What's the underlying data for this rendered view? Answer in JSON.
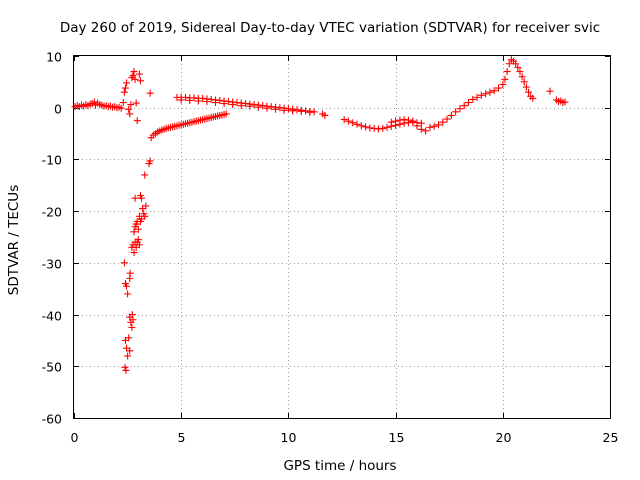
{
  "chart_data": {
    "type": "scatter",
    "title": "Day 260 of 2019, Sidereal Day-to-day VTEC variation (SDTVAR) for receiver svic",
    "xlabel": "GPS time / hours",
    "ylabel": "SDTVAR / TECUs",
    "xlim": [
      0,
      25
    ],
    "ylim": [
      -60,
      10
    ],
    "xticks": [
      "0",
      "5",
      "10",
      "15",
      "20",
      "25"
    ],
    "yticks": [
      "10",
      "0",
      "-10",
      "-20",
      "-30",
      "-40",
      "-50",
      "-60"
    ],
    "grid": true,
    "marker": "+",
    "series": [
      {
        "name": "SDTVAR",
        "color": "#ff0000",
        "points": [
          [
            0.05,
            0.2
          ],
          [
            0.15,
            0.4
          ],
          [
            0.25,
            0.2
          ],
          [
            0.35,
            0.5
          ],
          [
            0.45,
            0.3
          ],
          [
            0.55,
            0.6
          ],
          [
            0.65,
            0.4
          ],
          [
            0.75,
            0.7
          ],
          [
            0.85,
            0.8
          ],
          [
            0.95,
            1.1
          ],
          [
            1.0,
            0.5
          ],
          [
            1.1,
            0.9
          ],
          [
            1.2,
            0.6
          ],
          [
            1.3,
            0.5
          ],
          [
            1.4,
            0.3
          ],
          [
            1.5,
            0.4
          ],
          [
            1.6,
            0.2
          ],
          [
            1.7,
            0.3
          ],
          [
            1.8,
            0.1
          ],
          [
            1.9,
            0.2
          ],
          [
            2.0,
            0.0
          ],
          [
            2.1,
            0.1
          ],
          [
            2.2,
            -0.1
          ],
          [
            2.3,
            1.0
          ],
          [
            2.35,
            3.0
          ],
          [
            2.4,
            3.8
          ],
          [
            2.45,
            4.8
          ],
          [
            2.55,
            -0.3
          ],
          [
            2.6,
            -1.2
          ],
          [
            2.65,
            0.6
          ],
          [
            2.7,
            5.8
          ],
          [
            2.75,
            6.2
          ],
          [
            2.8,
            7.0
          ],
          [
            2.85,
            5.5
          ],
          [
            2.9,
            0.9
          ],
          [
            2.95,
            -2.5
          ],
          [
            3.05,
            6.5
          ],
          [
            3.1,
            5.2
          ],
          [
            3.55,
            2.8
          ],
          [
            2.35,
            -30.0
          ],
          [
            2.4,
            -34.0
          ],
          [
            2.45,
            -34.5
          ],
          [
            2.5,
            -36.0
          ],
          [
            2.4,
            -45.0
          ],
          [
            2.45,
            -46.5
          ],
          [
            2.5,
            -48.0
          ],
          [
            2.38,
            -50.2
          ],
          [
            2.42,
            -50.8
          ],
          [
            2.55,
            -44.5
          ],
          [
            2.6,
            -47.0
          ],
          [
            2.6,
            -40.5
          ],
          [
            2.65,
            -41.5
          ],
          [
            2.7,
            -42.5
          ],
          [
            2.72,
            -40.0
          ],
          [
            2.75,
            -41.0
          ],
          [
            2.6,
            -33.0
          ],
          [
            2.62,
            -32.0
          ],
          [
            2.7,
            -27.0
          ],
          [
            2.75,
            -26.5
          ],
          [
            2.8,
            -28.0
          ],
          [
            2.85,
            -26.0
          ],
          [
            2.9,
            -27.0
          ],
          [
            2.95,
            -26.0
          ],
          [
            3.0,
            -25.5
          ],
          [
            3.05,
            -26.5
          ],
          [
            2.8,
            -24.0
          ],
          [
            2.85,
            -23.0
          ],
          [
            2.9,
            -22.5
          ],
          [
            2.95,
            -22.0
          ],
          [
            3.0,
            -23.5
          ],
          [
            3.05,
            -21.0
          ],
          [
            3.1,
            -22.0
          ],
          [
            3.15,
            -21.5
          ],
          [
            2.85,
            -17.5
          ],
          [
            3.2,
            -19.5
          ],
          [
            3.25,
            -20.5
          ],
          [
            3.3,
            -21.0
          ],
          [
            3.35,
            -19.0
          ],
          [
            3.1,
            -17.0
          ],
          [
            3.15,
            -17.5
          ],
          [
            3.3,
            -13.0
          ],
          [
            3.5,
            -10.8
          ],
          [
            3.55,
            -10.3
          ],
          [
            3.6,
            -5.8
          ],
          [
            3.7,
            -5.3
          ],
          [
            3.8,
            -5.0
          ],
          [
            3.9,
            -4.7
          ],
          [
            4.0,
            -4.5
          ],
          [
            4.1,
            -4.3
          ],
          [
            4.2,
            -4.2
          ],
          [
            4.3,
            -4.0
          ],
          [
            4.4,
            -3.9
          ],
          [
            4.5,
            -3.8
          ],
          [
            4.6,
            -3.7
          ],
          [
            4.7,
            -3.6
          ],
          [
            4.8,
            -3.5
          ],
          [
            4.9,
            -3.4
          ],
          [
            5.0,
            -3.3
          ],
          [
            5.1,
            -3.2
          ],
          [
            5.2,
            -3.1
          ],
          [
            5.3,
            -3.0
          ],
          [
            5.4,
            -2.9
          ],
          [
            5.5,
            -2.8
          ],
          [
            5.6,
            -2.7
          ],
          [
            5.7,
            -2.6
          ],
          [
            5.8,
            -2.5
          ],
          [
            5.9,
            -2.4
          ],
          [
            6.0,
            -2.3
          ],
          [
            6.1,
            -2.2
          ],
          [
            6.2,
            -2.1
          ],
          [
            6.3,
            -2.0
          ],
          [
            6.4,
            -1.9
          ],
          [
            6.5,
            -1.8
          ],
          [
            6.6,
            -1.7
          ],
          [
            6.7,
            -1.6
          ],
          [
            6.8,
            -1.5
          ],
          [
            6.9,
            -1.4
          ],
          [
            7.0,
            -1.3
          ],
          [
            7.1,
            -1.2
          ],
          [
            4.8,
            2.0
          ],
          [
            5.0,
            2.0
          ],
          [
            5.2,
            2.0
          ],
          [
            5.4,
            1.9
          ],
          [
            5.6,
            1.9
          ],
          [
            5.8,
            1.8
          ],
          [
            6.0,
            1.8
          ],
          [
            6.2,
            1.7
          ],
          [
            6.4,
            1.6
          ],
          [
            6.6,
            1.5
          ],
          [
            6.8,
            1.4
          ],
          [
            7.0,
            1.3
          ],
          [
            7.2,
            1.2
          ],
          [
            7.4,
            1.1
          ],
          [
            7.6,
            1.0
          ],
          [
            7.8,
            0.9
          ],
          [
            8.0,
            0.8
          ],
          [
            8.2,
            0.7
          ],
          [
            8.4,
            0.6
          ],
          [
            8.6,
            0.5
          ],
          [
            8.8,
            0.4
          ],
          [
            9.0,
            0.3
          ],
          [
            9.2,
            0.2
          ],
          [
            9.4,
            0.1
          ],
          [
            9.6,
            0.0
          ],
          [
            9.8,
            -0.1
          ],
          [
            10.0,
            -0.2
          ],
          [
            10.2,
            -0.3
          ],
          [
            10.4,
            -0.4
          ],
          [
            10.6,
            -0.5
          ],
          [
            10.8,
            -0.6
          ],
          [
            11.0,
            -0.7
          ],
          [
            11.2,
            -0.8
          ],
          [
            11.6,
            -1.2
          ],
          [
            11.7,
            -1.5
          ],
          [
            5.0,
            1.5
          ],
          [
            5.4,
            1.4
          ],
          [
            5.8,
            1.3
          ],
          [
            6.2,
            1.2
          ],
          [
            6.6,
            1.0
          ],
          [
            7.0,
            0.8
          ],
          [
            7.4,
            0.6
          ],
          [
            7.8,
            0.4
          ],
          [
            8.2,
            0.3
          ],
          [
            8.6,
            0.1
          ],
          [
            9.0,
            -0.1
          ],
          [
            9.4,
            -0.3
          ],
          [
            9.8,
            -0.5
          ],
          [
            10.2,
            -0.6
          ],
          [
            10.6,
            -0.7
          ],
          [
            11.0,
            -0.9
          ],
          [
            12.6,
            -2.3
          ],
          [
            12.8,
            -2.6
          ],
          [
            13.0,
            -2.9
          ],
          [
            13.2,
            -3.2
          ],
          [
            13.4,
            -3.5
          ],
          [
            13.6,
            -3.7
          ],
          [
            13.8,
            -3.9
          ],
          [
            14.0,
            -4.0
          ],
          [
            14.2,
            -4.1
          ],
          [
            14.4,
            -4.0
          ],
          [
            14.6,
            -3.8
          ],
          [
            14.8,
            -3.6
          ],
          [
            15.0,
            -3.4
          ],
          [
            15.2,
            -3.2
          ],
          [
            15.4,
            -3.0
          ],
          [
            15.6,
            -2.9
          ],
          [
            15.8,
            -2.8
          ],
          [
            16.0,
            -2.9
          ],
          [
            16.2,
            -3.0
          ],
          [
            14.8,
            -2.8
          ],
          [
            15.0,
            -2.6
          ],
          [
            15.2,
            -2.4
          ],
          [
            15.4,
            -2.3
          ],
          [
            15.6,
            -2.4
          ],
          [
            15.8,
            -2.6
          ],
          [
            16.0,
            -3.5
          ],
          [
            16.2,
            -4.2
          ],
          [
            16.4,
            -4.5
          ],
          [
            16.6,
            -3.8
          ],
          [
            16.8,
            -3.6
          ],
          [
            17.0,
            -3.3
          ],
          [
            17.2,
            -2.8
          ],
          [
            17.4,
            -2.2
          ],
          [
            17.6,
            -1.5
          ],
          [
            17.8,
            -0.8
          ],
          [
            18.0,
            -0.2
          ],
          [
            18.2,
            0.4
          ],
          [
            18.4,
            1.0
          ],
          [
            18.6,
            1.6
          ],
          [
            18.8,
            2.0
          ],
          [
            19.0,
            2.4
          ],
          [
            19.2,
            2.7
          ],
          [
            19.4,
            3.0
          ],
          [
            19.6,
            3.3
          ],
          [
            19.8,
            3.8
          ],
          [
            20.0,
            4.5
          ],
          [
            20.1,
            5.5
          ],
          [
            20.2,
            7.0
          ],
          [
            20.3,
            8.5
          ],
          [
            20.4,
            9.3
          ],
          [
            20.5,
            9.0
          ],
          [
            20.6,
            8.5
          ],
          [
            20.7,
            7.8
          ],
          [
            20.8,
            7.0
          ],
          [
            20.9,
            6.0
          ],
          [
            21.0,
            5.0
          ],
          [
            21.1,
            4.0
          ],
          [
            21.2,
            3.0
          ],
          [
            21.3,
            2.2
          ],
          [
            21.4,
            1.8
          ],
          [
            22.2,
            3.2
          ],
          [
            22.5,
            1.5
          ],
          [
            22.6,
            1.2
          ],
          [
            22.7,
            1.3
          ],
          [
            22.8,
            1.0
          ],
          [
            22.9,
            1.1
          ]
        ]
      }
    ]
  }
}
